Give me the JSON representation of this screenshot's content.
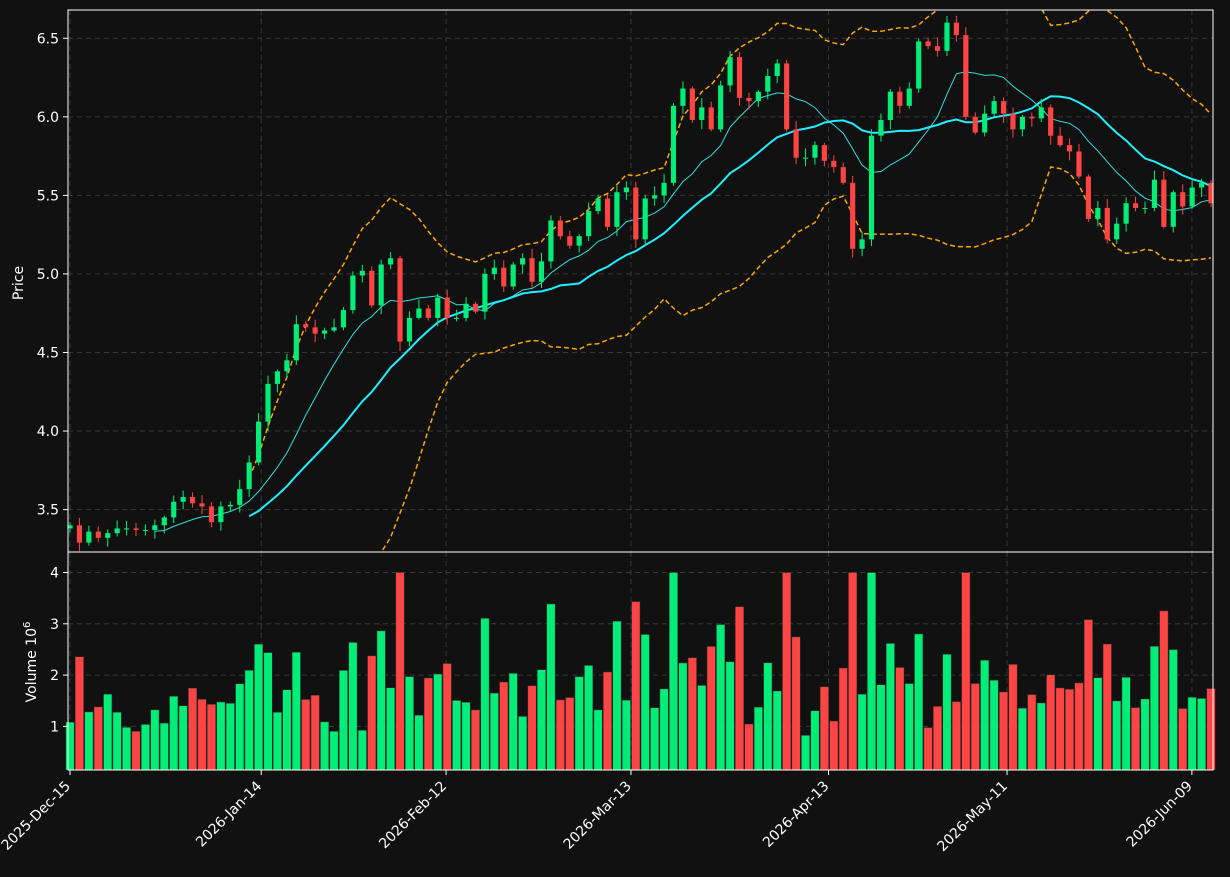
{
  "theme": {
    "background": "#111111",
    "axis": "#ffffff",
    "grid": "#3a3a3a",
    "up": "#00ee77",
    "down": "#ff4444",
    "ma_fast": "#33dddd",
    "ma_slow": "#22eeff",
    "bands": "#ffa500"
  },
  "chart_data": {
    "type": "candlestick",
    "grid": true,
    "price_axis": {
      "label": "Price",
      "range": [
        3.23,
        6.68
      ],
      "ticks": [
        3.5,
        4.0,
        4.5,
        5.0,
        5.5,
        6.0,
        6.5
      ],
      "tick_labels": [
        "3.5",
        "4.0",
        "4.5",
        "5.0",
        "5.5",
        "6.0",
        "6.5"
      ]
    },
    "volume_axis": {
      "label": "Volume",
      "multiplier": "10",
      "exponent": "6",
      "range": [
        0.15,
        4.4
      ],
      "ticks": [
        1,
        2,
        3,
        4
      ],
      "tick_labels": [
        "1",
        "2",
        "3",
        "4"
      ]
    },
    "x_axis": {
      "start_date": "2025-12-15",
      "end_date": "2026-06-12",
      "ticks": [
        {
          "date": "2025-12-15",
          "label": "2025-Dec-15"
        },
        {
          "date": "2026-01-14",
          "label": "2026-Jan-14"
        },
        {
          "date": "2026-02-12",
          "label": "2026-Feb-12"
        },
        {
          "date": "2026-03-13",
          "label": "2026-Mar-13"
        },
        {
          "date": "2026-04-13",
          "label": "2026-Apr-13"
        },
        {
          "date": "2026-05-11",
          "label": "2026-May-11"
        },
        {
          "date": "2026-06-09",
          "label": "2026-Jun-09"
        }
      ]
    },
    "close": [
      3.4,
      3.29,
      3.36,
      3.32,
      3.35,
      3.38,
      3.38,
      3.37,
      3.37,
      3.4,
      3.45,
      3.55,
      3.58,
      3.54,
      3.52,
      3.42,
      3.52,
      3.53,
      3.63,
      3.8,
      4.06,
      4.3,
      4.38,
      4.45,
      4.68,
      4.66,
      4.62,
      4.64,
      4.66,
      4.77,
      4.99,
      5.02,
      4.8,
      5.06,
      5.1,
      4.57,
      4.72,
      4.78,
      4.72,
      4.85,
      4.72,
      4.72,
      4.81,
      4.76,
      5.0,
      5.04,
      4.92,
      5.06,
      5.1,
      4.95,
      5.08,
      5.34,
      5.24,
      5.18,
      5.24,
      5.4,
      5.48,
      5.3,
      5.52,
      5.55,
      5.22,
      5.48,
      5.5,
      5.58,
      6.07,
      6.18,
      5.98,
      6.06,
      5.92,
      6.2,
      6.38,
      6.12,
      6.1,
      6.16,
      6.26,
      6.34,
      5.92,
      5.74,
      5.74,
      5.82,
      5.72,
      5.68,
      5.58,
      5.16,
      5.22,
      5.88,
      5.98,
      6.16,
      6.07,
      6.18,
      6.48,
      6.45,
      6.42,
      6.6,
      6.52,
      6.0,
      5.9,
      6.02,
      6.1,
      6.02,
      5.92,
      6.0,
      5.99,
      6.06,
      5.88,
      5.82,
      5.78,
      5.62,
      5.35,
      5.42,
      5.22,
      5.32,
      5.45,
      5.42,
      5.42,
      5.6,
      5.3,
      5.52,
      5.43,
      5.55,
      5.58,
      5.45
    ]
  }
}
